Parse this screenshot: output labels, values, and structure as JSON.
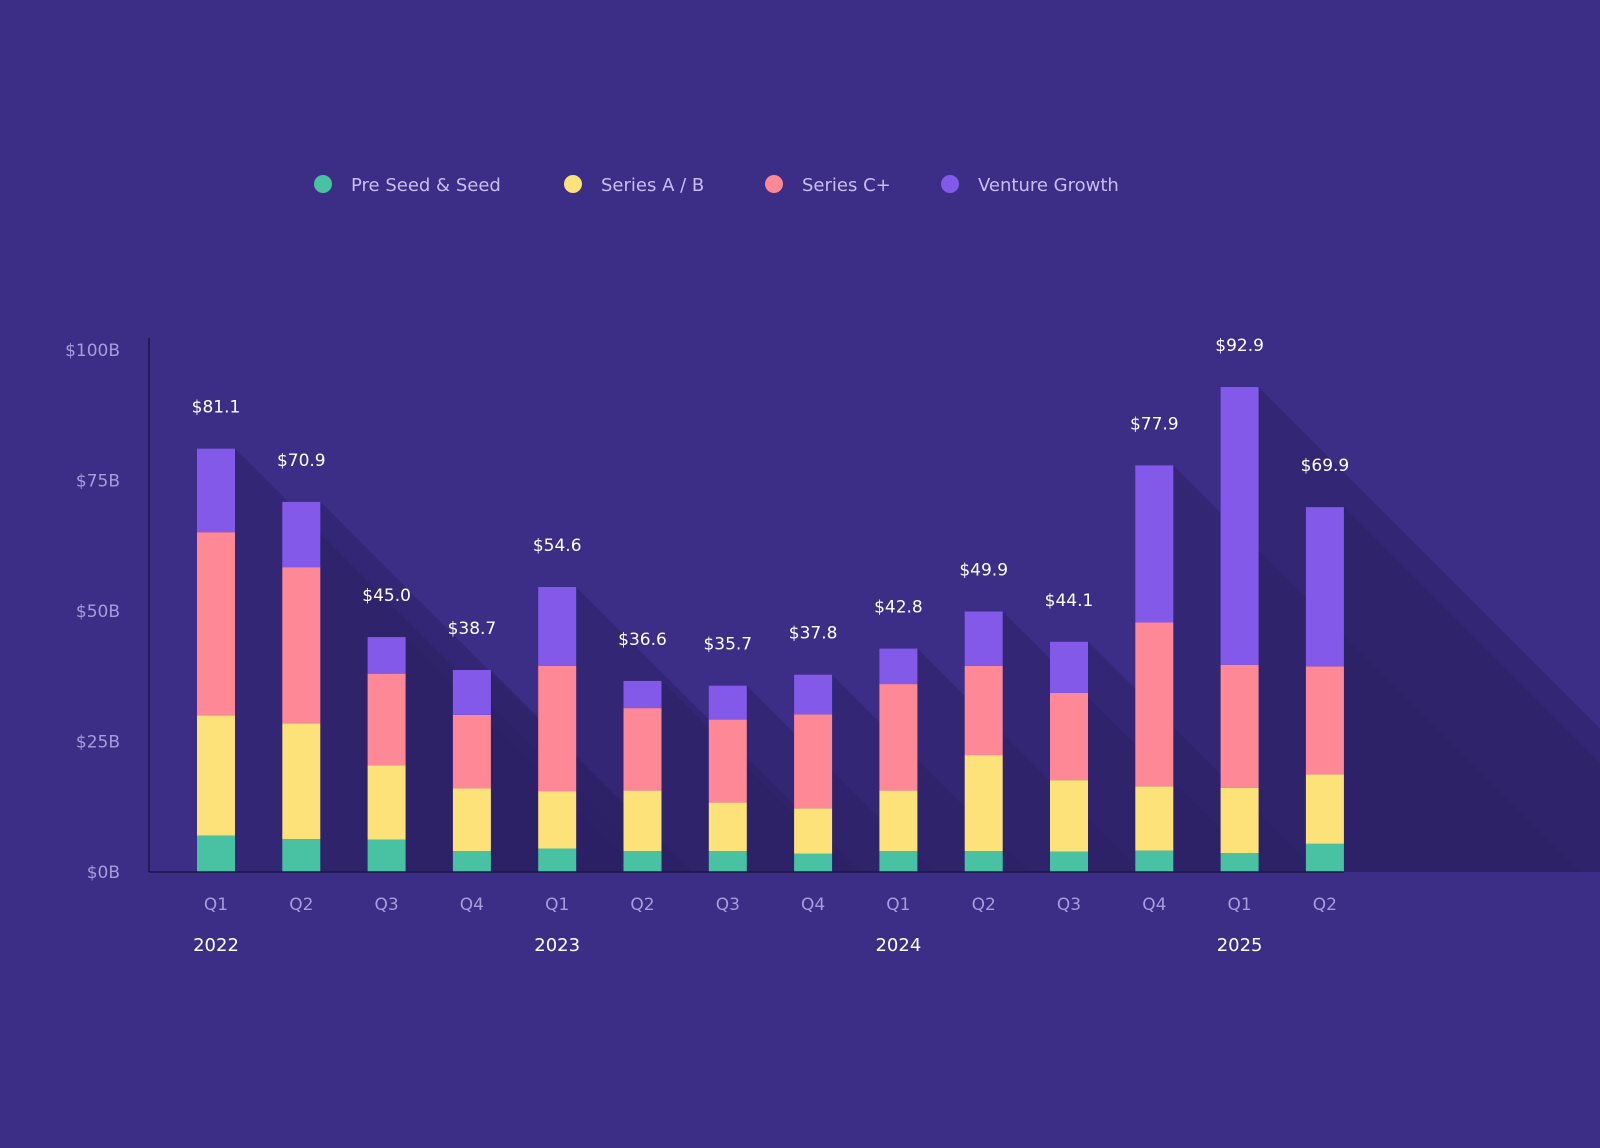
{
  "chart_data": {
    "type": "bar",
    "stacked": true,
    "categories": [
      "Q1",
      "Q2",
      "Q3",
      "Q4",
      "Q1",
      "Q2",
      "Q3",
      "Q4",
      "Q1",
      "Q2",
      "Q3",
      "Q4",
      "Q1",
      "Q2"
    ],
    "years": [
      {
        "label": "2022",
        "category_index": 0
      },
      {
        "label": "2023",
        "category_index": 4
      },
      {
        "label": "2024",
        "category_index": 8
      },
      {
        "label": "2025",
        "category_index": 12
      }
    ],
    "series": [
      {
        "name": "Pre Seed & Seed",
        "color": "#48c2a2",
        "values": [
          7.0,
          6.3,
          6.2,
          4.0,
          4.5,
          4.0,
          4.0,
          3.5,
          4.0,
          4.0,
          3.9,
          4.1,
          3.6,
          5.4
        ]
      },
      {
        "name": "Series A / B",
        "color": "#fde27a",
        "values": [
          23.0,
          22.2,
          14.2,
          12.0,
          11.0,
          11.6,
          9.3,
          8.7,
          11.6,
          18.4,
          13.7,
          12.3,
          12.5,
          13.3
        ]
      },
      {
        "name": "Series C+",
        "color": "#ff8896",
        "values": [
          35.1,
          29.9,
          17.6,
          14.1,
          24.0,
          15.8,
          15.9,
          18.0,
          20.4,
          17.1,
          16.7,
          31.4,
          23.6,
          20.7
        ]
      },
      {
        "name": "Venture Growth",
        "color": "#8259e8",
        "values": [
          16.0,
          12.5,
          7.0,
          8.6,
          15.1,
          5.2,
          6.5,
          7.6,
          6.8,
          10.4,
          9.8,
          30.1,
          53.2,
          30.5
        ]
      }
    ],
    "totals": [
      "$81.1",
      "$70.9",
      "$45.0",
      "$38.7",
      "$54.6",
      "$36.6",
      "$35.7",
      "$37.8",
      "$42.8",
      "$49.9",
      "$44.1",
      "$77.9",
      "$92.9",
      "$69.9"
    ],
    "y_ticks": [
      "$0B",
      "$25B",
      "$50B",
      "$75B",
      "$100B"
    ],
    "ylim": [
      0,
      100
    ],
    "legend_position": "top",
    "grid": false,
    "title": "",
    "xlabel": "",
    "ylabel": ""
  },
  "colors": {
    "background": "#3c2d86",
    "shadow": "#2c2166",
    "axis": "#1c1545"
  }
}
